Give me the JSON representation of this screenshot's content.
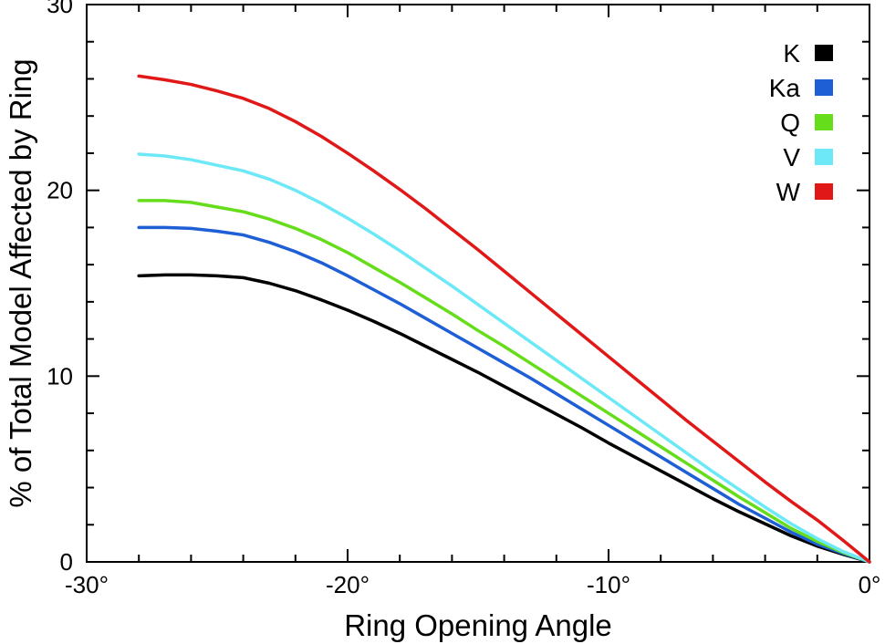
{
  "chart_data": {
    "type": "line",
    "title": "",
    "xlabel": "Ring Opening Angle",
    "ylabel": "% of Total Model Affected by Ring",
    "xlim": [
      -30,
      0
    ],
    "ylim": [
      0,
      30
    ],
    "x_ticks": [
      {
        "value": -30,
        "label": "-30°"
      },
      {
        "value": -20,
        "label": "-20°"
      },
      {
        "value": -10,
        "label": "-10°"
      },
      {
        "value": 0,
        "label": "0°"
      }
    ],
    "y_ticks": [
      {
        "value": 0,
        "label": "0"
      },
      {
        "value": 10,
        "label": "10"
      },
      {
        "value": 20,
        "label": "20"
      },
      {
        "value": 30,
        "label": "30"
      }
    ],
    "grid": false,
    "legend_position": "top-right",
    "x": [
      -28,
      -27,
      -26,
      -25,
      -24,
      -23,
      -22,
      -21,
      -20,
      -19,
      -18,
      -17,
      -16,
      -15,
      -14,
      -13,
      -12,
      -11,
      -10,
      -9,
      -8,
      -7,
      -6,
      -5,
      -4,
      -3,
      -2,
      -1,
      0
    ],
    "series": [
      {
        "name": "K",
        "color": "#000000",
        "values": [
          15.4,
          15.45,
          15.45,
          15.4,
          15.3,
          15.0,
          14.6,
          14.1,
          13.55,
          12.95,
          12.3,
          11.6,
          10.9,
          10.2,
          9.45,
          8.7,
          7.95,
          7.2,
          6.4,
          5.65,
          4.9,
          4.15,
          3.4,
          2.7,
          2.05,
          1.4,
          0.85,
          0.4,
          0.0
        ]
      },
      {
        "name": "Ka",
        "color": "#1f5fd6",
        "values": [
          18.0,
          18.0,
          17.95,
          17.8,
          17.6,
          17.2,
          16.7,
          16.1,
          15.4,
          14.65,
          13.9,
          13.1,
          12.3,
          11.5,
          10.7,
          9.9,
          9.05,
          8.2,
          7.35,
          6.5,
          5.65,
          4.8,
          3.95,
          3.1,
          2.35,
          1.6,
          0.95,
          0.45,
          0.0
        ]
      },
      {
        "name": "Q",
        "color": "#66dd1a",
        "values": [
          19.45,
          19.45,
          19.35,
          19.1,
          18.85,
          18.45,
          17.95,
          17.35,
          16.65,
          15.85,
          15.05,
          14.2,
          13.35,
          12.45,
          11.6,
          10.7,
          9.8,
          8.9,
          8.0,
          7.1,
          6.2,
          5.3,
          4.4,
          3.5,
          2.65,
          1.8,
          1.1,
          0.5,
          0.0
        ]
      },
      {
        "name": "V",
        "color": "#6ce8f7",
        "values": [
          21.95,
          21.85,
          21.65,
          21.35,
          21.05,
          20.6,
          20.0,
          19.3,
          18.5,
          17.65,
          16.75,
          15.8,
          14.85,
          13.85,
          12.85,
          11.85,
          10.85,
          9.85,
          8.85,
          7.85,
          6.85,
          5.85,
          4.85,
          3.9,
          2.95,
          2.05,
          1.25,
          0.55,
          0.0
        ]
      },
      {
        "name": "W",
        "color": "#e01818",
        "values": [
          26.15,
          25.95,
          25.7,
          25.35,
          24.95,
          24.4,
          23.7,
          22.9,
          22.0,
          21.05,
          20.05,
          19.0,
          17.9,
          16.8,
          15.65,
          14.5,
          13.35,
          12.2,
          11.05,
          9.9,
          8.75,
          7.6,
          6.5,
          5.4,
          4.3,
          3.25,
          2.25,
          1.15,
          0.0
        ]
      }
    ]
  }
}
